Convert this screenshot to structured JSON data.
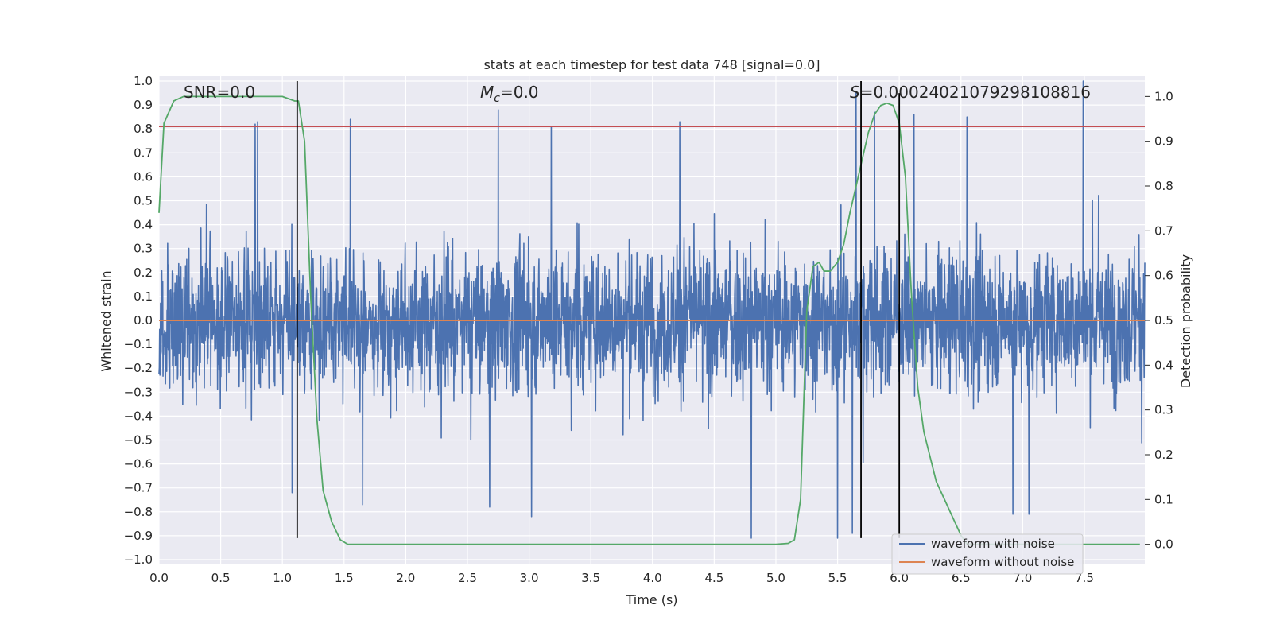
{
  "chart_data": {
    "type": "line",
    "title": "stats at each timestep for test data 748 [signal=0.0]",
    "xlabel": "Time (s)",
    "ylabel": "Whitened strain",
    "y2label": "Detection probability",
    "xlim": [
      0.0,
      7.99
    ],
    "ylim": [
      -1.02,
      1.02
    ],
    "y2lim": [
      -0.045,
      1.045
    ],
    "xticks": [
      0.0,
      0.5,
      1.0,
      1.5,
      2.0,
      2.5,
      3.0,
      3.5,
      4.0,
      4.5,
      5.0,
      5.5,
      6.0,
      6.5,
      7.0,
      7.5
    ],
    "xtick_labels": [
      "0.0",
      "0.5",
      "1.0",
      "1.5",
      "2.0",
      "2.5",
      "3.0",
      "3.5",
      "4.0",
      "4.5",
      "5.0",
      "5.5",
      "6.0",
      "6.5",
      "7.0",
      "7.5"
    ],
    "yticks": [
      -1.0,
      -0.9,
      -0.8,
      -0.7,
      -0.6,
      -0.5,
      -0.4,
      -0.3,
      -0.2,
      -0.1,
      0.0,
      0.1,
      0.2,
      0.3,
      0.4,
      0.5,
      0.6,
      0.7,
      0.8,
      0.9,
      1.0
    ],
    "ytick_labels": [
      "−1.0",
      "−0.9",
      "−0.8",
      "−0.7",
      "−0.6",
      "−0.5",
      "−0.4",
      "−0.3",
      "−0.2",
      "−0.1",
      "0.0",
      "0.1",
      "0.2",
      "0.3",
      "0.4",
      "0.5",
      "0.6",
      "0.7",
      "0.8",
      "0.9",
      "1.0"
    ],
    "y2ticks": [
      0.0,
      0.1,
      0.2,
      0.3,
      0.4,
      0.5,
      0.6,
      0.7,
      0.8,
      0.9,
      1.0
    ],
    "y2tick_labels": [
      "0.0",
      "0.1",
      "0.2",
      "0.3",
      "0.4",
      "0.5",
      "0.6",
      "0.7",
      "0.8",
      "0.9",
      "1.0"
    ],
    "annotations": {
      "snr": "SNR=0.0",
      "mc_sym": "M",
      "mc_sub": "c",
      "mc_val": "=0.0",
      "s_sym": "S",
      "s_val": "=0.00024021079298108816"
    },
    "series": [
      {
        "name": "waveform with noise",
        "color": "#4c72b0",
        "kind": "noise",
        "x_range": [
          0.0,
          7.99
        ],
        "typical_envelope": [
          -0.4,
          0.45
        ],
        "max_abs": 1.0,
        "peaks": [
          {
            "x": 0.78,
            "y": 0.82
          },
          {
            "x": 0.8,
            "y": 0.83
          },
          {
            "x": 1.55,
            "y": 0.84
          },
          {
            "x": 2.75,
            "y": 0.88
          },
          {
            "x": 3.18,
            "y": 0.81
          },
          {
            "x": 4.22,
            "y": 0.83
          },
          {
            "x": 5.65,
            "y": 0.95
          },
          {
            "x": 5.8,
            "y": 0.87
          },
          {
            "x": 6.12,
            "y": 0.86
          },
          {
            "x": 6.55,
            "y": 0.85
          },
          {
            "x": 7.49,
            "y": 1.0
          },
          {
            "x": 1.08,
            "y": -0.72
          },
          {
            "x": 1.65,
            "y": -0.77
          },
          {
            "x": 2.68,
            "y": -0.78
          },
          {
            "x": 3.02,
            "y": -0.82
          },
          {
            "x": 4.8,
            "y": -0.91
          },
          {
            "x": 5.5,
            "y": -0.91
          },
          {
            "x": 5.62,
            "y": -0.89
          },
          {
            "x": 6.92,
            "y": -0.81
          },
          {
            "x": 7.05,
            "y": -0.81
          }
        ]
      },
      {
        "name": "waveform without noise",
        "color": "#dd8452",
        "x": [
          0.0,
          7.99
        ],
        "y": [
          0.0,
          0.0
        ]
      },
      {
        "name": "detection probability",
        "color": "#55a868",
        "axis": "right",
        "x": [
          0.0,
          0.04,
          0.12,
          0.2,
          0.3,
          0.5,
          0.8,
          1.0,
          1.1,
          1.13,
          1.18,
          1.23,
          1.28,
          1.33,
          1.4,
          1.47,
          1.53,
          1.6,
          2.0,
          3.0,
          4.0,
          5.0,
          5.1,
          5.15,
          5.2,
          5.25,
          5.3,
          5.35,
          5.39,
          5.44,
          5.5,
          5.55,
          5.6,
          5.65,
          5.7,
          5.75,
          5.8,
          5.85,
          5.9,
          5.95,
          6.0,
          6.05,
          6.1,
          6.15,
          6.2,
          6.3,
          6.4,
          6.5,
          6.55,
          6.6,
          6.8,
          7.0,
          7.5,
          7.95
        ],
        "y": [
          0.74,
          0.94,
          0.99,
          1.0,
          1.0,
          1.0,
          1.0,
          1.0,
          0.99,
          0.99,
          0.9,
          0.55,
          0.28,
          0.12,
          0.05,
          0.01,
          0.0,
          0.0,
          0.0,
          0.0,
          0.0,
          0.0,
          0.002,
          0.01,
          0.1,
          0.52,
          0.62,
          0.63,
          0.61,
          0.61,
          0.63,
          0.67,
          0.74,
          0.8,
          0.86,
          0.92,
          0.96,
          0.98,
          0.985,
          0.98,
          0.94,
          0.82,
          0.55,
          0.35,
          0.25,
          0.14,
          0.08,
          0.02,
          0.0,
          0.0,
          0.0,
          0.0,
          0.0,
          0.0
        ]
      }
    ],
    "hlines": [
      {
        "y": 0.81,
        "color": "#c44e52",
        "axis": "left"
      }
    ],
    "vlines": [
      {
        "x": 1.12,
        "y_range": [
          -0.91,
          1.0
        ],
        "color": "#000000"
      },
      {
        "x": 5.69,
        "y_range": [
          -0.91,
          1.0
        ],
        "color": "#000000"
      },
      {
        "x": 6.0,
        "y_range": [
          -0.91,
          0.95
        ],
        "color": "#000000"
      }
    ],
    "legend": {
      "placement": "lower-right",
      "entries": [
        {
          "label": "waveform with noise",
          "color": "#4c72b0"
        },
        {
          "label": "waveform without noise",
          "color": "#dd8452"
        }
      ]
    },
    "style": {
      "background": "#eaeaf2",
      "grid_color": "#ffffff",
      "grid": true
    }
  }
}
